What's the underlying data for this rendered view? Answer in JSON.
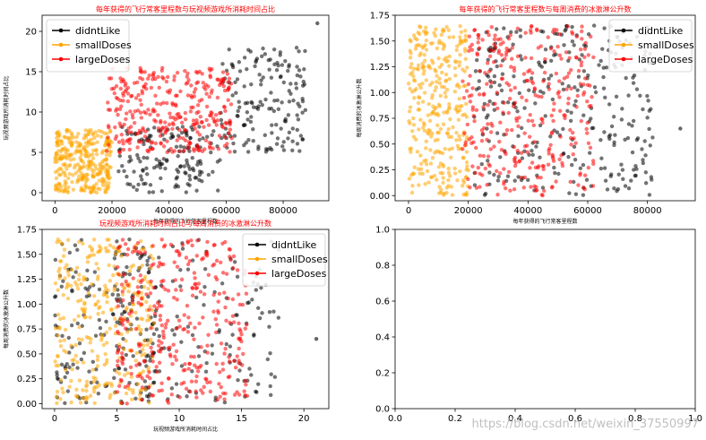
{
  "colors": {
    "didntLike": "#000000",
    "smallDoses": "#ffa500",
    "largeDoses": "#ff0000",
    "title": "#ff0000"
  },
  "chart_data": [
    {
      "type": "scatter",
      "title": "每年获得的飞行常客里程数与玩视频游戏所消耗时间占比",
      "xlabel": "每年获得的飞行常客里程数",
      "ylabel": "玩视频游戏所消耗时间占比",
      "xlim": [
        -4500,
        96000
      ],
      "ylim": [
        -1,
        22
      ],
      "xticks": [
        0,
        20000,
        40000,
        60000,
        80000
      ],
      "xtick_labels": [
        "0",
        "20000",
        "40000",
        "60000",
        "80000"
      ],
      "yticks": [
        0,
        5,
        10,
        15,
        20
      ],
      "ytick_labels": [
        "0",
        "5",
        "10",
        "15",
        "20"
      ],
      "legend": {
        "position": "top-left",
        "entries": [
          "didntLike",
          "smallDoses",
          "largeDoses"
        ]
      },
      "series": [
        {
          "name": "didntLike",
          "color": "#000000",
          "clusters": [
            {
              "cx": [
                22000,
                58000
              ],
              "cy": [
                0,
                8.2
              ],
              "n": 150
            },
            {
              "cx": [
                58000,
                88000
              ],
              "cy": [
                5,
                18
              ],
              "n": 160
            }
          ],
          "extra_points": [
            [
              92000,
              21
            ]
          ]
        },
        {
          "name": "smallDoses",
          "color": "#ffa500",
          "clusters": [
            {
              "cx": [
                0,
                20000
              ],
              "cy": [
                0,
                8
              ],
              "n": 320
            }
          ]
        },
        {
          "name": "largeDoses",
          "color": "#ff0000",
          "clusters": [
            {
              "cx": [
                18000,
                62000
              ],
              "cy": [
                5,
                15.5
              ],
              "n": 330
            }
          ]
        }
      ]
    },
    {
      "type": "scatter",
      "title": "每年获得的飞行常客里程数与每周消费的冰激淋公升数",
      "xlabel": "每年获得的飞行常客里程数",
      "ylabel": "每周消费的冰激淋公升数",
      "xlim": [
        -4500,
        96000
      ],
      "ylim": [
        -0.05,
        1.75
      ],
      "xticks": [
        0,
        20000,
        40000,
        60000,
        80000
      ],
      "xtick_labels": [
        "0",
        "20000",
        "40000",
        "60000",
        "80000"
      ],
      "yticks": [
        0,
        0.25,
        0.5,
        0.75,
        1.0,
        1.25,
        1.5,
        1.75
      ],
      "ytick_labels": [
        "0.00",
        "0.25",
        "0.50",
        "0.75",
        "1.00",
        "1.25",
        "1.50",
        "1.75"
      ],
      "legend": {
        "position": "top-right",
        "entries": [
          "didntLike",
          "smallDoses",
          "largeDoses"
        ]
      },
      "series": [
        {
          "name": "didntLike",
          "color": "#000000",
          "clusters": [
            {
              "cx": [
                22000,
                82000
              ],
              "cy": [
                0,
                1.65
              ],
              "n": 300
            }
          ],
          "extra_points": [
            [
              91000,
              0.65
            ]
          ]
        },
        {
          "name": "smallDoses",
          "color": "#ffa500",
          "clusters": [
            {
              "cx": [
                0,
                20000
              ],
              "cy": [
                0,
                1.65
              ],
              "n": 320
            }
          ]
        },
        {
          "name": "largeDoses",
          "color": "#ff0000",
          "clusters": [
            {
              "cx": [
                18000,
                62000
              ],
              "cy": [
                0,
                1.65
              ],
              "n": 330
            }
          ]
        }
      ]
    },
    {
      "type": "scatter",
      "title": "玩视频游戏所消耗时间占比与每周消费的冰激淋公升数",
      "xlabel": "玩视频游戏所消耗时间占比",
      "ylabel": "每周消费的冰激淋公升数",
      "xlim": [
        -1,
        22
      ],
      "ylim": [
        -0.05,
        1.75
      ],
      "xticks": [
        0,
        5,
        10,
        15,
        20
      ],
      "xtick_labels": [
        "0",
        "5",
        "10",
        "15",
        "20"
      ],
      "yticks": [
        0,
        0.25,
        0.5,
        0.75,
        1.0,
        1.25,
        1.5,
        1.75
      ],
      "ytick_labels": [
        "0.00",
        "0.25",
        "0.50",
        "0.75",
        "1.00",
        "1.25",
        "1.50",
        "1.75"
      ],
      "legend": {
        "position": "top-right",
        "entries": [
          "didntLike",
          "smallDoses",
          "largeDoses"
        ]
      },
      "series": [
        {
          "name": "didntLike",
          "color": "#000000",
          "clusters": [
            {
              "cx": [
                0,
                8.2
              ],
              "cy": [
                0,
                1.65
              ],
              "n": 150
            },
            {
              "cx": [
                5,
                18
              ],
              "cy": [
                0,
                1.65
              ],
              "n": 150
            }
          ],
          "extra_points": [
            [
              21,
              0.65
            ]
          ]
        },
        {
          "name": "smallDoses",
          "color": "#ffa500",
          "clusters": [
            {
              "cx": [
                0,
                8
              ],
              "cy": [
                0,
                1.65
              ],
              "n": 320
            }
          ]
        },
        {
          "name": "largeDoses",
          "color": "#ff0000",
          "clusters": [
            {
              "cx": [
                5,
                15.5
              ],
              "cy": [
                0,
                1.65
              ],
              "n": 330
            }
          ]
        }
      ]
    },
    {
      "type": "scatter",
      "title": "",
      "xlabel": "",
      "ylabel": "",
      "xlim": [
        0,
        1
      ],
      "ylim": [
        0,
        1
      ],
      "xticks": [
        0,
        0.2,
        0.4,
        0.6,
        0.8,
        1.0
      ],
      "xtick_labels": [
        "0.0",
        "0.2",
        "0.4",
        "0.6",
        "0.8",
        "1.0"
      ],
      "yticks": [
        0,
        0.2,
        0.4,
        0.6,
        0.8,
        1.0
      ],
      "ytick_labels": [
        "0.0",
        "0.2",
        "0.4",
        "0.6",
        "0.8",
        "1.0"
      ],
      "legend": null,
      "series": []
    }
  ],
  "watermark": "https://blog.csdn.net/weixin_37550997"
}
